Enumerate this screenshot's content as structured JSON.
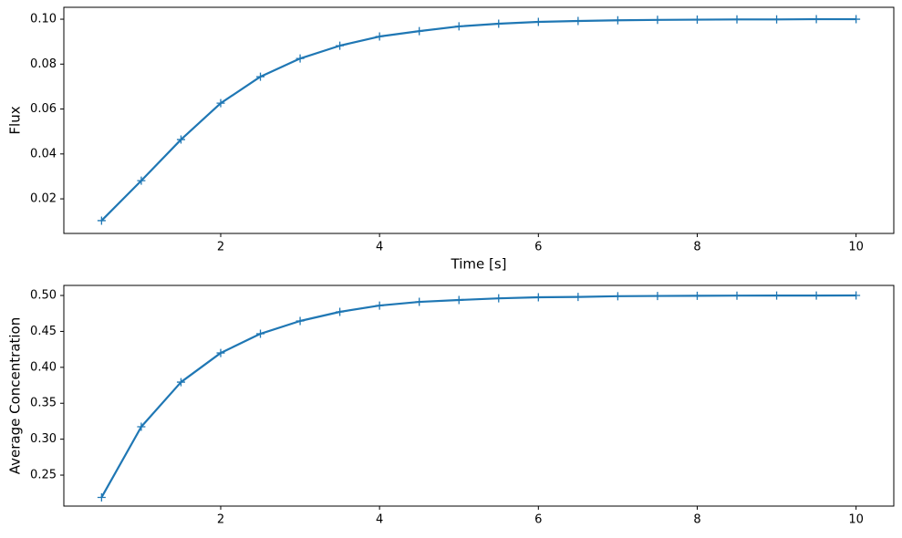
{
  "chart_data": [
    {
      "type": "line",
      "ylabel": "Flux",
      "xlabel": "Time [s]",
      "x": [
        0.5,
        1.0,
        1.5,
        2.0,
        2.5,
        3.0,
        3.5,
        4.0,
        4.5,
        5.0,
        5.5,
        6.0,
        6.5,
        7.0,
        7.5,
        8.0,
        8.5,
        9.0,
        9.5,
        10.0
      ],
      "values": [
        0.0103,
        0.0281,
        0.0464,
        0.0626,
        0.0744,
        0.0825,
        0.0882,
        0.0923,
        0.0947,
        0.0968,
        0.098,
        0.0988,
        0.0992,
        0.0995,
        0.0997,
        0.0998,
        0.0999,
        0.0999,
        0.1,
        0.1
      ],
      "color": "#1f77b4",
      "marker": "+",
      "xlim": [
        0.025,
        10.475
      ],
      "xticks": [
        2,
        4,
        6,
        8,
        10
      ],
      "ylim": [
        0.0046,
        0.1053
      ],
      "yticks": [
        0.02,
        0.04,
        0.06,
        0.08,
        {
          "value": 0.1,
          "label": "0.10"
        }
      ]
    },
    {
      "type": "line",
      "ylabel": "Average Concentration",
      "x": [
        0.5,
        1.0,
        1.5,
        2.0,
        2.5,
        3.0,
        3.5,
        4.0,
        4.5,
        5.0,
        5.5,
        6.0,
        6.5,
        7.0,
        7.5,
        8.0,
        8.5,
        9.0,
        9.5,
        10.0
      ],
      "values": [
        0.219,
        0.3173,
        0.3794,
        0.42,
        0.4467,
        0.4645,
        0.4772,
        0.486,
        0.4911,
        0.4937,
        0.496,
        0.4975,
        0.498,
        0.499,
        0.4993,
        0.4996,
        0.4998,
        0.4999,
        0.4999,
        0.5
      ],
      "color": "#1f77b4",
      "marker": "+",
      "xlim": [
        0.025,
        10.475
      ],
      "xticks": [
        2,
        4,
        6,
        8,
        10
      ],
      "ylim": [
        0.2069,
        0.514
      ],
      "yticks": [
        0.25,
        {
          "value": 0.3,
          "label": "0.30"
        },
        0.35,
        {
          "value": 0.4,
          "label": "0.40"
        },
        0.45,
        {
          "value": 0.5,
          "label": "0.50"
        }
      ]
    }
  ]
}
